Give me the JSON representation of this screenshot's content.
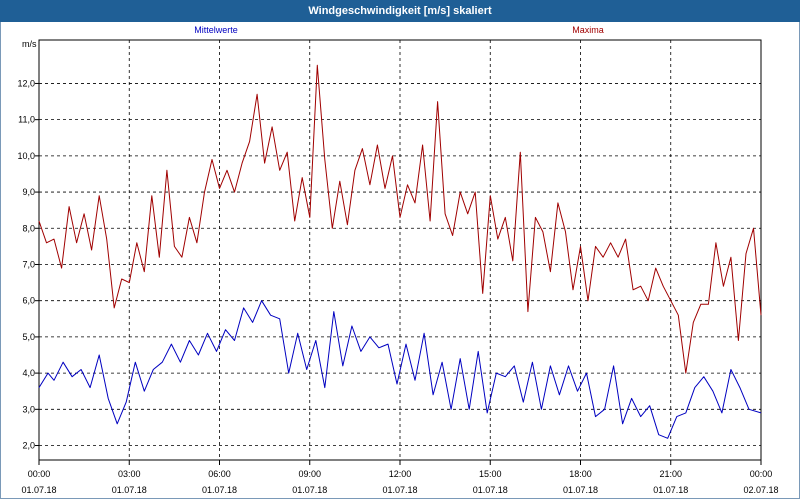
{
  "window": {
    "title": "Windgeschwindigkeit [m/s] skaliert"
  },
  "chart_data": {
    "type": "line",
    "title": "Windgeschwindigkeit [m/s] skaliert",
    "ylabel": "m/s",
    "xlabel": "",
    "ylim": [
      1.6,
      13.2
    ],
    "y_ticks": [
      "2,0",
      "3,0",
      "4,0",
      "5,0",
      "6,0",
      "7,0",
      "8,0",
      "9,0",
      "10,0",
      "11,0",
      "12,0"
    ],
    "y_tick_values": [
      2,
      3,
      4,
      5,
      6,
      7,
      8,
      9,
      10,
      11,
      12
    ],
    "xlim_hours": [
      0,
      24
    ],
    "x_ticks": [
      {
        "time": "00:00",
        "date": "01.07.18"
      },
      {
        "time": "03:00",
        "date": "01.07.18"
      },
      {
        "time": "06:00",
        "date": "01.07.18"
      },
      {
        "time": "09:00",
        "date": "01.07.18"
      },
      {
        "time": "12:00",
        "date": "01.07.18"
      },
      {
        "time": "15:00",
        "date": "01.07.18"
      },
      {
        "time": "18:00",
        "date": "01.07.18"
      },
      {
        "time": "21:00",
        "date": "01.07.18"
      },
      {
        "time": "00:00",
        "date": "02.07.18"
      }
    ],
    "x_tick_hours": [
      0,
      3,
      6,
      9,
      12,
      15,
      18,
      21,
      24
    ],
    "grid": true,
    "legend_position": "top",
    "series": [
      {
        "name": "Mittelwerte",
        "color": "#0000c0",
        "hours": [
          0,
          0.3,
          0.5,
          0.8,
          1.1,
          1.4,
          1.7,
          2.0,
          2.3,
          2.6,
          2.9,
          3.2,
          3.5,
          3.8,
          4.1,
          4.4,
          4.7,
          5.0,
          5.3,
          5.6,
          5.9,
          6.2,
          6.5,
          6.8,
          7.1,
          7.4,
          7.7,
          8.0,
          8.3,
          8.6,
          8.9,
          9.2,
          9.5,
          9.8,
          10.1,
          10.4,
          10.7,
          11.0,
          11.3,
          11.6,
          11.9,
          12.2,
          12.5,
          12.8,
          13.1,
          13.4,
          13.7,
          14.0,
          14.3,
          14.6,
          14.9,
          15.2,
          15.5,
          15.8,
          16.1,
          16.4,
          16.7,
          17.0,
          17.3,
          17.6,
          17.9,
          18.2,
          18.5,
          18.8,
          19.1,
          19.4,
          19.7,
          20.0,
          20.3,
          20.6,
          20.9,
          21.2,
          21.5,
          21.8,
          22.1,
          22.4,
          22.7,
          23.0,
          23.3,
          23.6,
          24.0
        ],
        "values": [
          3.6,
          4.0,
          3.8,
          4.3,
          3.9,
          4.1,
          3.6,
          4.5,
          3.3,
          2.6,
          3.2,
          4.3,
          3.5,
          4.1,
          4.3,
          4.8,
          4.3,
          4.9,
          4.5,
          5.1,
          4.6,
          5.2,
          4.9,
          5.8,
          5.4,
          6.0,
          5.6,
          5.5,
          4.0,
          5.1,
          4.1,
          4.9,
          3.6,
          5.7,
          4.2,
          5.3,
          4.6,
          5.0,
          4.7,
          4.8,
          3.7,
          4.8,
          3.8,
          5.1,
          3.4,
          4.3,
          3.0,
          4.4,
          3.0,
          4.6,
          2.9,
          4.0,
          3.9,
          4.2,
          3.2,
          4.3,
          3.0,
          4.2,
          3.4,
          4.2,
          3.5,
          4.0,
          2.8,
          3.0,
          4.2,
          2.6,
          3.3,
          2.8,
          3.1,
          2.3,
          2.2,
          2.8,
          2.9,
          3.6,
          3.9,
          3.5,
          2.9,
          4.1,
          3.6,
          3.0,
          2.9
        ]
      },
      {
        "name": "Maxima",
        "color": "#a00000",
        "hours": [
          0,
          0.25,
          0.5,
          0.75,
          1.0,
          1.25,
          1.5,
          1.75,
          2.0,
          2.25,
          2.5,
          2.75,
          3.0,
          3.25,
          3.5,
          3.75,
          4.0,
          4.25,
          4.5,
          4.75,
          5.0,
          5.25,
          5.5,
          5.75,
          6.0,
          6.25,
          6.5,
          6.75,
          7.0,
          7.25,
          7.5,
          7.75,
          8.0,
          8.25,
          8.5,
          8.75,
          9.0,
          9.25,
          9.5,
          9.75,
          10.0,
          10.25,
          10.5,
          10.75,
          11.0,
          11.25,
          11.5,
          11.75,
          12.0,
          12.25,
          12.5,
          12.75,
          13.0,
          13.25,
          13.5,
          13.75,
          14.0,
          14.25,
          14.5,
          14.75,
          15.0,
          15.25,
          15.5,
          15.75,
          16.0,
          16.25,
          16.5,
          16.75,
          17.0,
          17.25,
          17.5,
          17.75,
          18.0,
          18.25,
          18.5,
          18.75,
          19.0,
          19.25,
          19.5,
          19.75,
          20.0,
          20.25,
          20.5,
          20.75,
          21.0,
          21.25,
          21.5,
          21.75,
          22.0,
          22.25,
          22.5,
          22.75,
          23.0,
          23.25,
          23.5,
          23.75,
          24.0
        ],
        "values": [
          8.2,
          7.6,
          7.7,
          6.9,
          8.6,
          7.6,
          8.4,
          7.4,
          8.9,
          7.7,
          5.8,
          6.6,
          6.5,
          7.6,
          6.8,
          8.9,
          7.2,
          9.6,
          7.5,
          7.2,
          8.3,
          7.6,
          9.0,
          9.9,
          9.1,
          9.6,
          9.0,
          9.8,
          10.4,
          11.7,
          9.8,
          10.8,
          9.6,
          10.1,
          8.2,
          9.4,
          8.3,
          12.5,
          9.9,
          8.0,
          9.3,
          8.1,
          9.6,
          10.2,
          9.2,
          10.3,
          9.1,
          10.0,
          8.3,
          9.2,
          8.7,
          10.3,
          8.2,
          11.5,
          8.4,
          7.8,
          9.0,
          8.4,
          9.0,
          6.2,
          8.9,
          7.7,
          8.3,
          7.1,
          10.1,
          5.7,
          8.3,
          7.9,
          6.8,
          8.7,
          7.9,
          6.3,
          7.5,
          6.0,
          7.5,
          7.2,
          7.6,
          7.2,
          7.7,
          6.3,
          6.4,
          6.0,
          6.9,
          6.4,
          6.0,
          5.6,
          4.0,
          5.4,
          5.9,
          5.9,
          7.6,
          6.4,
          7.2,
          4.9,
          7.3,
          8.0,
          5.6
        ]
      }
    ]
  }
}
